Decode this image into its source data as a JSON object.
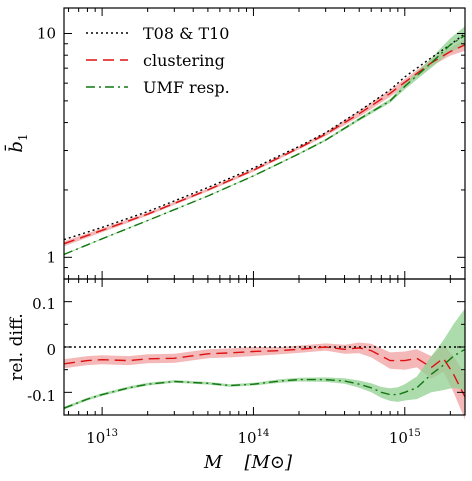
{
  "chart_data": [
    {
      "type": "line",
      "panel": "top",
      "xscale": "log",
      "yscale": "log",
      "xlim": [
        5600000000000.0,
        2500000000000000.0
      ],
      "ylim": [
        0.8,
        13.0
      ],
      "ylabel": "b̄",
      "ylabel_sub": "1",
      "yticks": [
        1,
        10
      ],
      "ytick_labels": [
        "1",
        "10"
      ],
      "legend_position": "top-left",
      "series": [
        {
          "name": "T08 & T10",
          "style": "dotted",
          "color": "#000000",
          "x": [
            5600000000000.0,
            10000000000000.0,
            20000000000000.0,
            50000000000000.0,
            100000000000000.0,
            200000000000000.0,
            300000000000000.0,
            500000000000000.0,
            800000000000000.0,
            1000000000000000.0,
            1500000000000000.0,
            2000000000000000.0,
            2500000000000000.0
          ],
          "y": [
            1.2,
            1.36,
            1.6,
            2.05,
            2.5,
            3.13,
            3.6,
            4.5,
            5.6,
            6.4,
            7.8,
            8.9,
            10.0
          ]
        },
        {
          "name": "clustering",
          "style": "dashed",
          "color": "#dd1111",
          "band_color": "#f0a0a0",
          "x": [
            5600000000000.0,
            10000000000000.0,
            20000000000000.0,
            50000000000000.0,
            100000000000000.0,
            200000000000000.0,
            300000000000000.0,
            500000000000000.0,
            800000000000000.0,
            1000000000000000.0,
            1500000000000000.0,
            2000000000000000.0,
            2500000000000000.0
          ],
          "y": [
            1.15,
            1.32,
            1.56,
            2.0,
            2.45,
            3.08,
            3.55,
            4.38,
            5.4,
            6.05,
            7.4,
            8.3,
            8.9
          ],
          "band": [
            0.025,
            0.02,
            0.015,
            0.015,
            0.015,
            0.015,
            0.02,
            0.03,
            0.035,
            0.035,
            0.035,
            0.04,
            0.06
          ]
        },
        {
          "name": "UMF resp.",
          "style": "dashdot",
          "color": "#117711",
          "band_color": "#90d090",
          "x": [
            5600000000000.0,
            10000000000000.0,
            20000000000000.0,
            50000000000000.0,
            100000000000000.0,
            200000000000000.0,
            300000000000000.0,
            500000000000000.0,
            800000000000000.0,
            1000000000000000.0,
            1500000000000000.0,
            2000000000000000.0,
            2500000000000000.0
          ],
          "y": [
            1.03,
            1.21,
            1.46,
            1.88,
            2.31,
            2.9,
            3.34,
            4.14,
            5.0,
            5.8,
            7.4,
            8.9,
            9.8
          ],
          "band": [
            0.005,
            0.005,
            0.005,
            0.005,
            0.006,
            0.008,
            0.01,
            0.015,
            0.02,
            0.03,
            0.05,
            0.07,
            0.1
          ]
        }
      ]
    },
    {
      "type": "line",
      "panel": "bottom",
      "xscale": "log",
      "yscale": "linear",
      "xlim": [
        5600000000000.0,
        2500000000000000.0
      ],
      "ylim": [
        -0.15,
        0.15
      ],
      "ylabel": "rel. diff.",
      "yticks": [
        -0.1,
        0,
        0.1
      ],
      "ytick_labels": [
        "-0.1",
        "0",
        "0.1"
      ],
      "xticks": [
        10000000000000.0,
        100000000000000.0,
        1000000000000000.0
      ],
      "xtick_labels": [
        {
          "base": "10",
          "exp": "13"
        },
        {
          "base": "10",
          "exp": "14"
        },
        {
          "base": "10",
          "exp": "15"
        }
      ],
      "xlabel": "M",
      "xlabel_unit": "[M⊙]",
      "series": [
        {
          "name": "T08 & T10",
          "style": "dotted",
          "color": "#000000",
          "x": [
            5600000000000.0,
            2500000000000000.0
          ],
          "y": [
            0,
            0
          ]
        },
        {
          "name": "clustering",
          "style": "dashed",
          "color": "#dd1111",
          "band_color": "#f0a0a0",
          "x": [
            5600000000000.0,
            8000000000000.0,
            10000000000000.0,
            15000000000000.0,
            20000000000000.0,
            30000000000000.0,
            50000000000000.0,
            70000000000000.0,
            100000000000000.0,
            150000000000000.0,
            200000000000000.0,
            300000000000000.0,
            400000000000000.0,
            500000000000000.0,
            600000000000000.0,
            800000000000000.0,
            1000000000000000.0,
            1200000000000000.0,
            1500000000000000.0,
            1800000000000000.0,
            2100000000000000.0,
            2500000000000000.0
          ],
          "y": [
            -0.037,
            -0.03,
            -0.028,
            -0.03,
            -0.026,
            -0.025,
            -0.015,
            -0.013,
            -0.01,
            -0.008,
            -0.005,
            0.0,
            -0.005,
            -0.002,
            -0.008,
            -0.03,
            -0.03,
            -0.025,
            -0.045,
            -0.025,
            -0.06,
            -0.11
          ],
          "band": [
            0.01,
            0.01,
            0.01,
            0.01,
            0.01,
            0.01,
            0.01,
            0.01,
            0.01,
            0.008,
            0.008,
            0.008,
            0.01,
            0.012,
            0.015,
            0.018,
            0.02,
            0.02,
            0.025,
            0.03,
            0.04,
            0.05
          ]
        },
        {
          "name": "UMF resp.",
          "style": "dashdot",
          "color": "#117711",
          "band_color": "#90d090",
          "x": [
            5600000000000.0,
            8000000000000.0,
            10000000000000.0,
            15000000000000.0,
            20000000000000.0,
            30000000000000.0,
            50000000000000.0,
            70000000000000.0,
            100000000000000.0,
            150000000000000.0,
            200000000000000.0,
            300000000000000.0,
            400000000000000.0,
            500000000000000.0,
            600000000000000.0,
            700000000000000.0,
            800000000000000.0,
            900000000000000.0,
            1000000000000000.0,
            1200000000000000.0,
            1500000000000000.0,
            1800000000000000.0,
            2100000000000000.0,
            2500000000000000.0
          ],
          "y": [
            -0.135,
            -0.115,
            -0.105,
            -0.09,
            -0.082,
            -0.076,
            -0.08,
            -0.085,
            -0.082,
            -0.075,
            -0.072,
            -0.072,
            -0.075,
            -0.082,
            -0.09,
            -0.1,
            -0.105,
            -0.105,
            -0.1,
            -0.09,
            -0.06,
            -0.04,
            -0.02,
            -0.005
          ],
          "band": [
            0.003,
            0.003,
            0.003,
            0.003,
            0.003,
            0.003,
            0.003,
            0.003,
            0.003,
            0.004,
            0.004,
            0.005,
            0.006,
            0.008,
            0.01,
            0.012,
            0.014,
            0.016,
            0.018,
            0.025,
            0.04,
            0.055,
            0.07,
            0.09
          ]
        }
      ]
    }
  ]
}
